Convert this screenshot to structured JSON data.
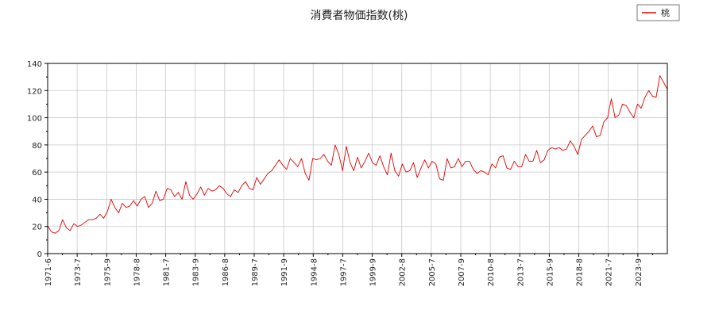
{
  "chart_data": {
    "type": "line",
    "title": "消費者物価指数(桃)",
    "xlabel": "",
    "ylabel": "",
    "ylim": [
      0,
      140
    ],
    "yticks": [
      0,
      20,
      40,
      60,
      80,
      100,
      120,
      140
    ],
    "xticks": [
      "1971-6",
      "1973-7",
      "1975-9",
      "1978-8",
      "1981-7",
      "1983-9",
      "1986-8",
      "1989-7",
      "1991-9",
      "1994-8",
      "1997-7",
      "1999-9",
      "2002-8",
      "2005-7",
      "2007-9",
      "2010-8",
      "2013-7",
      "2015-9",
      "2018-8",
      "2021-7",
      "2023-9"
    ],
    "grid": true,
    "legend": "top-right",
    "series": [
      {
        "name": "桃",
        "color": "#e00000",
        "values": [
          20.5,
          16,
          15,
          17,
          25,
          19,
          17,
          22,
          20,
          21,
          23,
          25,
          25,
          26,
          29,
          26,
          31,
          40,
          34,
          30,
          37,
          34,
          35,
          39,
          35,
          40,
          42,
          34,
          37,
          46,
          39,
          40,
          48,
          47,
          42,
          45,
          40,
          53,
          43,
          40,
          44,
          49,
          43,
          48,
          46,
          47,
          50,
          48,
          44,
          42,
          47,
          45,
          50,
          53,
          48,
          47,
          56,
          51,
          55,
          59,
          61,
          65,
          69,
          65,
          62,
          70,
          67,
          64,
          70,
          59,
          54,
          70,
          69,
          70,
          73,
          68,
          65,
          80,
          73,
          61,
          79,
          67,
          61,
          71,
          63,
          68,
          74,
          67,
          65,
          72,
          64,
          58,
          74,
          61,
          57,
          66,
          60,
          61,
          67,
          56,
          63,
          69,
          63,
          68,
          66,
          55,
          54,
          70,
          63,
          64,
          70,
          64,
          68,
          68,
          62,
          59,
          61,
          60,
          58,
          66,
          63,
          71,
          72,
          63,
          62,
          68,
          64,
          64,
          73,
          68,
          68,
          76,
          67,
          69,
          76,
          78,
          77,
          78,
          76,
          77,
          83,
          79,
          73,
          84,
          87,
          90,
          94,
          86,
          87,
          97,
          100,
          114,
          100,
          102,
          110,
          109,
          104,
          100,
          110,
          107,
          115,
          120,
          116,
          115,
          131,
          126,
          121
        ]
      }
    ]
  }
}
